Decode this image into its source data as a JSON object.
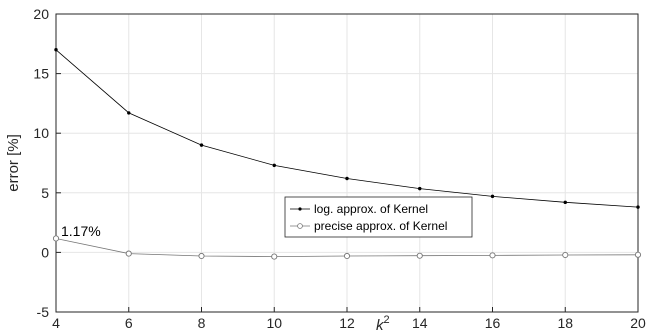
{
  "chart_data": {
    "type": "line",
    "xlabel_base": "k",
    "xlabel_exp": "2",
    "ylabel": "error [%]",
    "xlim": [
      4,
      20
    ],
    "ylim": [
      -5,
      20
    ],
    "xticks": [
      4,
      6,
      8,
      10,
      12,
      14,
      16,
      18,
      20
    ],
    "yticks": [
      -5,
      0,
      5,
      10,
      15,
      20
    ],
    "grid": true,
    "legend_position": "center",
    "x": [
      4,
      6,
      8,
      10,
      12,
      14,
      16,
      18,
      20
    ],
    "series": [
      {
        "name": "log. approx. of Kernel",
        "values": [
          17.0,
          11.7,
          9.0,
          7.3,
          6.2,
          5.35,
          4.7,
          4.2,
          3.8
        ],
        "marker": "dot",
        "color": "#000000"
      },
      {
        "name": "precise approx. of Kernel",
        "values": [
          1.17,
          -0.1,
          -0.3,
          -0.35,
          -0.3,
          -0.28,
          -0.25,
          -0.22,
          -0.2
        ],
        "marker": "circle",
        "color": "#777777"
      }
    ],
    "annotations": [
      {
        "text": "1.17%",
        "x": 4,
        "y": 1.17
      }
    ]
  }
}
